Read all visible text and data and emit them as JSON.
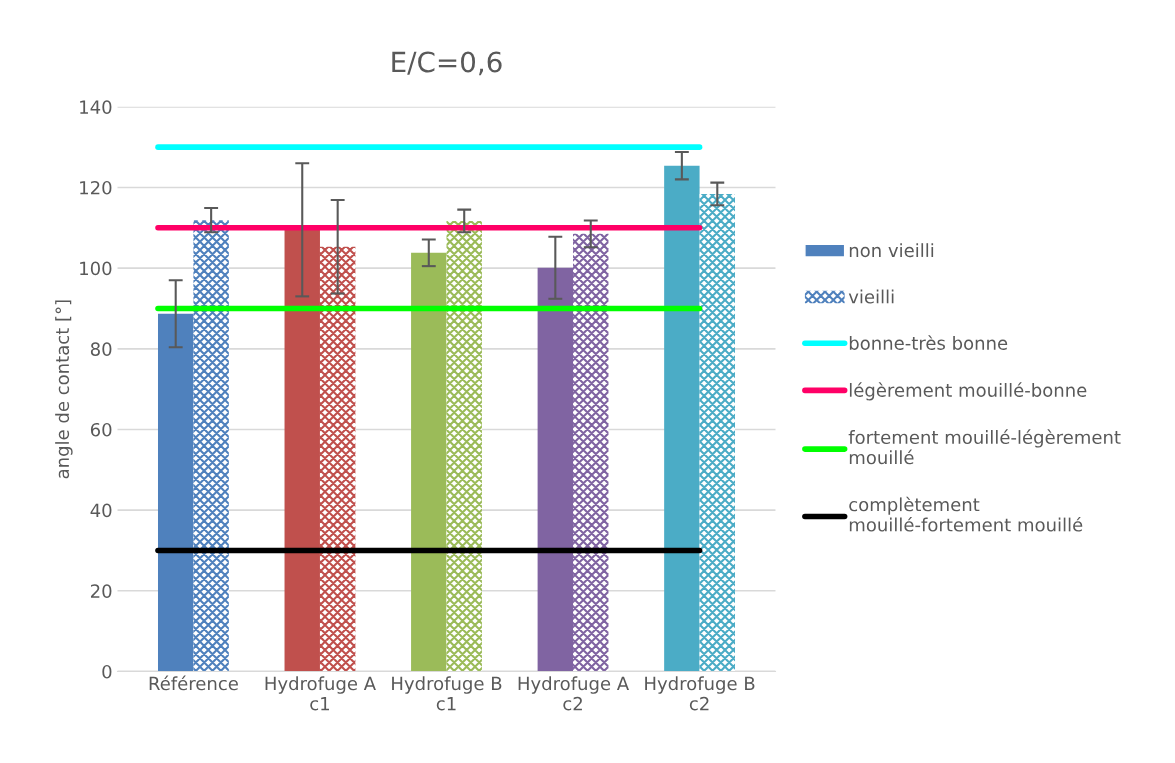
{
  "chart_data": {
    "type": "bar",
    "title": "E/C=0,6",
    "ylabel": "angle de contact [°]",
    "categories": [
      "Référence",
      "Hydrofuge A c1",
      "Hydrofuge B c1",
      "Hydrofuge A c2",
      "Hydrofuge B c2"
    ],
    "series": [
      {
        "name": "non vieilli",
        "colors": [
          "#4f81bd",
          "#c0504d",
          "#9bbb59",
          "#8064a2",
          "#4bacc6"
        ],
        "values": [
          88.7,
          109.5,
          103.8,
          100.1,
          125.4
        ],
        "errors": [
          8.3,
          16.5,
          3.3,
          7.7,
          3.4
        ]
      },
      {
        "name": "vieilli",
        "colors": [
          "#4f81bd",
          "#c0504d",
          "#9bbb59",
          "#8064a2",
          "#4bacc6"
        ],
        "values": [
          111.9,
          105.3,
          111.7,
          108.5,
          118.4
        ],
        "errors": [
          3.0,
          11.6,
          2.8,
          3.3,
          2.8
        ]
      }
    ],
    "ref_lines": [
      {
        "axis": "y",
        "value": 130,
        "label": "bonne-très bonne",
        "color": "#00ffff"
      },
      {
        "axis": "y",
        "value": 110,
        "label": "légèrement mouillé-bonne",
        "color": "#ff0066"
      },
      {
        "axis": "y",
        "value": 90,
        "label": "fortement mouillé-légèrement mouillé",
        "color": "#00ff00"
      },
      {
        "axis": "y",
        "value": 30,
        "label": "complètement mouillé-fortement mouillé",
        "color": "#000000"
      }
    ],
    "ylim": [
      0,
      140
    ],
    "yticks": [
      0,
      20,
      40,
      60,
      80,
      100,
      120,
      140
    ],
    "grid": "y",
    "legend": "right"
  }
}
